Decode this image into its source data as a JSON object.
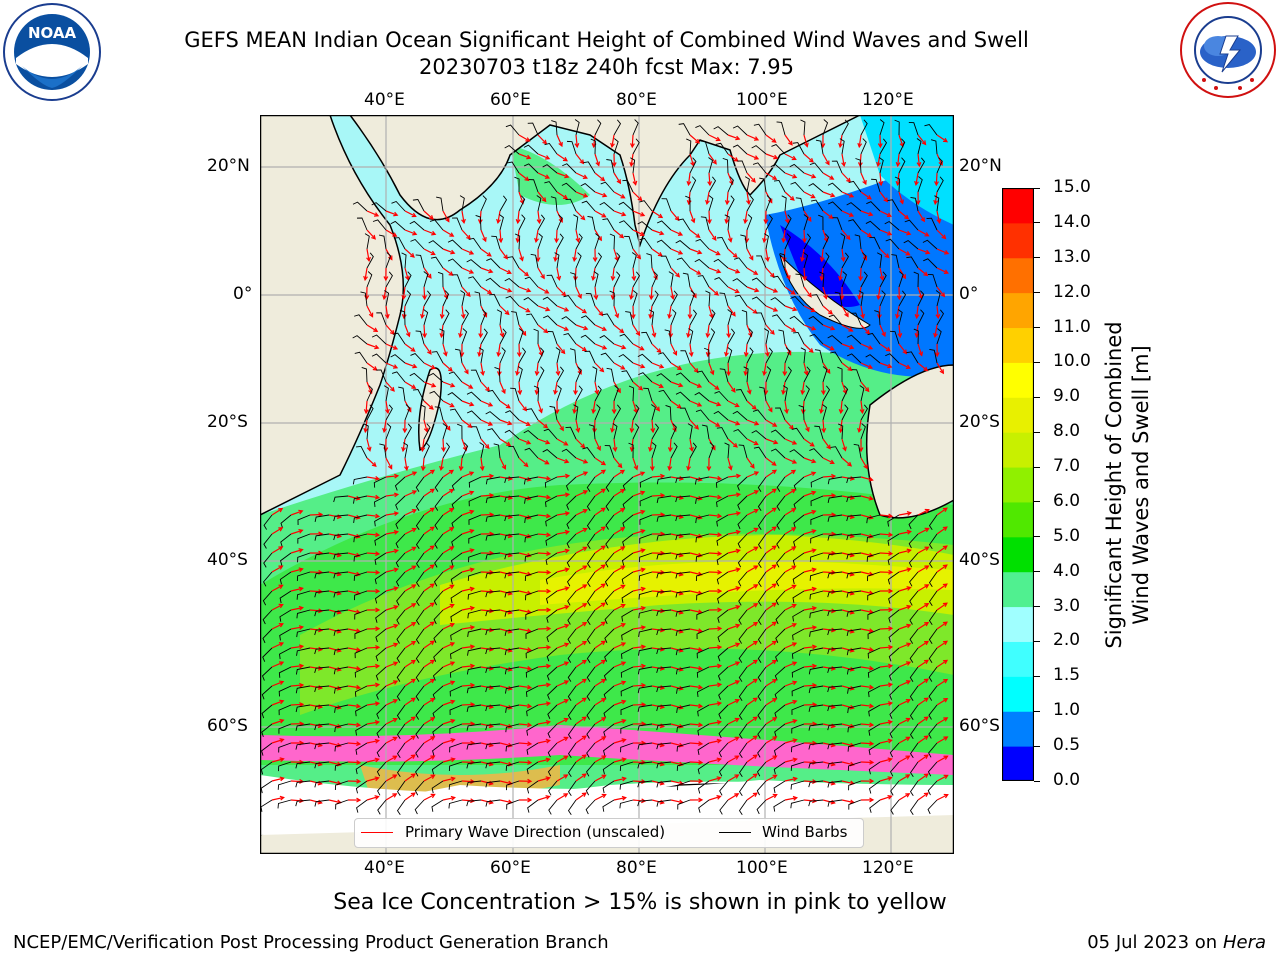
{
  "header": {
    "title_line1": "GEFS MEAN Indian Ocean Significant Height of Combined Wind Waves and Swell",
    "title_line2": "20230703 t18z 240h fcst   Max: 7.95"
  },
  "logos": {
    "left": {
      "text": "NOAA",
      "ring_text": "NATIONAL OCEANIC AND ATMOSPHERIC ADMINISTRATION · U.S. DEPARTMENT OF COMMERCE"
    },
    "right": {
      "ring_text": "NATIONAL WEATHER SERVICE"
    }
  },
  "map": {
    "lon_labels": [
      "40°E",
      "60°E",
      "80°E",
      "100°E",
      "120°E"
    ],
    "lat_labels": [
      "20°N",
      "0°",
      "20°S",
      "40°S",
      "60°S"
    ],
    "colors": {
      "land": "#efecdc",
      "ice": "#ff66cc",
      "wave_arrow": "#ff0000",
      "barb": "#000000"
    }
  },
  "colorbar": {
    "label_line1": "Significant Height of Combined",
    "label_line2": "Wind Waves and Swell [m]",
    "ticks": [
      "0.0",
      "0.5",
      "1.0",
      "1.5",
      "2.0",
      "3.0",
      "4.0",
      "5.0",
      "6.0",
      "7.0",
      "8.0",
      "9.0",
      "10.0",
      "11.0",
      "12.0",
      "13.0",
      "14.0",
      "15.0"
    ],
    "colors": [
      "#0000ff",
      "#0080ff",
      "#00ffff",
      "#40ffff",
      "#a0ffff",
      "#50f090",
      "#00e000",
      "#50e800",
      "#90f000",
      "#c8f000",
      "#e8f000",
      "#ffff00",
      "#ffd000",
      "#ffa500",
      "#ff7000",
      "#ff3000",
      "#ff0000"
    ]
  },
  "legend": {
    "wave_label": "Primary Wave Direction (unscaled)",
    "barb_label": "Wind Barbs"
  },
  "note": "Sea Ice Concentration > 15% is shown in pink to yellow",
  "footer": {
    "left": "NCEP/EMC/Verification Post Processing Product Generation Branch",
    "date": "05 Jul 2023 on",
    "machine": "Hera"
  }
}
